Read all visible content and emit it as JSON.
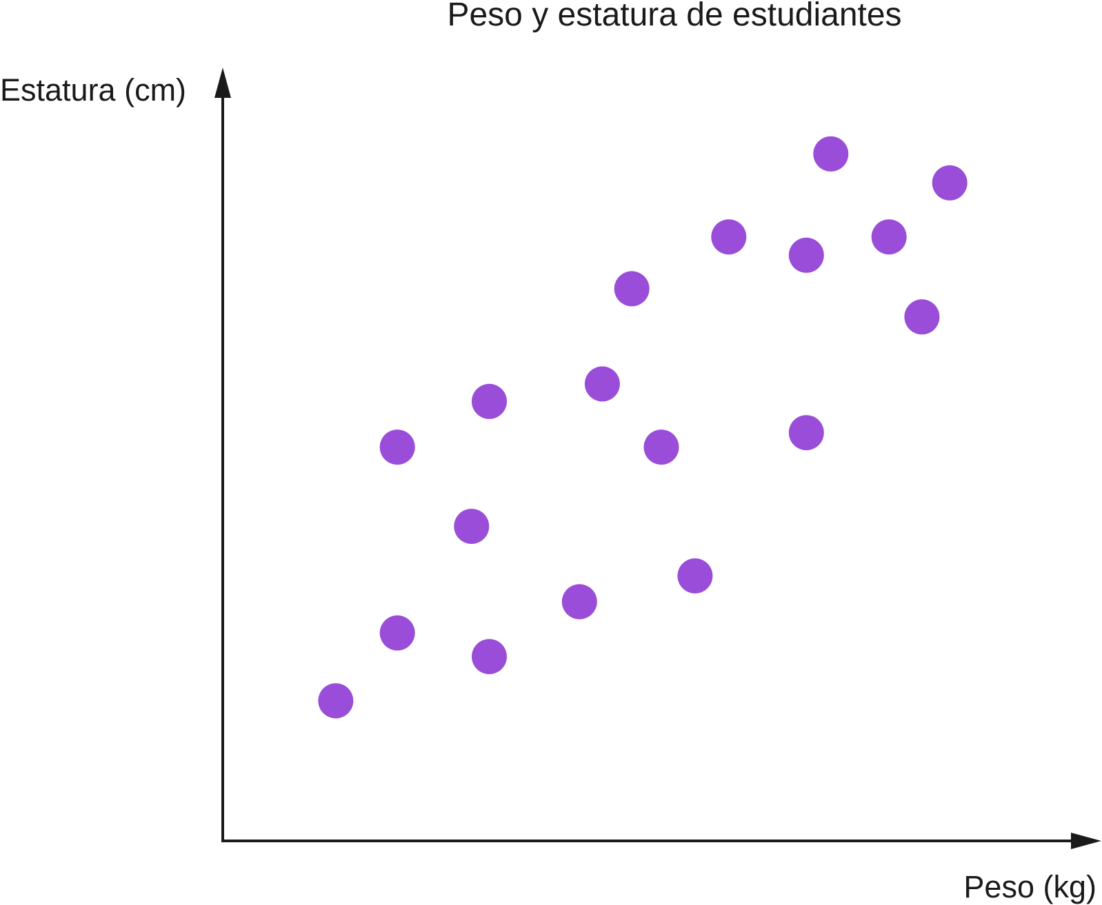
{
  "chart_data": {
    "type": "scatter",
    "title": "Peso y estatura de estudiantes",
    "xlabel": "Peso (kg)",
    "ylabel": "Estatura (cm)",
    "xlim": [
      0,
      100
    ],
    "ylim": [
      0,
      100
    ],
    "grid": false,
    "ticks_shown": false,
    "marker_color": "#9a4dd8",
    "axis_color": "#1a1a1a",
    "points": [
      {
        "x": 13.4,
        "y": 18.4
      },
      {
        "x": 20.7,
        "y": 27.3
      },
      {
        "x": 20.7,
        "y": 51.7
      },
      {
        "x": 29.5,
        "y": 41.3
      },
      {
        "x": 31.6,
        "y": 24.2
      },
      {
        "x": 31.6,
        "y": 57.7
      },
      {
        "x": 42.3,
        "y": 31.4
      },
      {
        "x": 45.0,
        "y": 60.0
      },
      {
        "x": 48.5,
        "y": 72.5
      },
      {
        "x": 52.0,
        "y": 51.7
      },
      {
        "x": 56.0,
        "y": 34.8
      },
      {
        "x": 60.0,
        "y": 79.3
      },
      {
        "x": 69.2,
        "y": 53.6
      },
      {
        "x": 69.2,
        "y": 76.9
      },
      {
        "x": 72.1,
        "y": 90.2
      },
      {
        "x": 79.0,
        "y": 79.3
      },
      {
        "x": 82.9,
        "y": 68.8
      },
      {
        "x": 86.2,
        "y": 86.4
      }
    ]
  }
}
